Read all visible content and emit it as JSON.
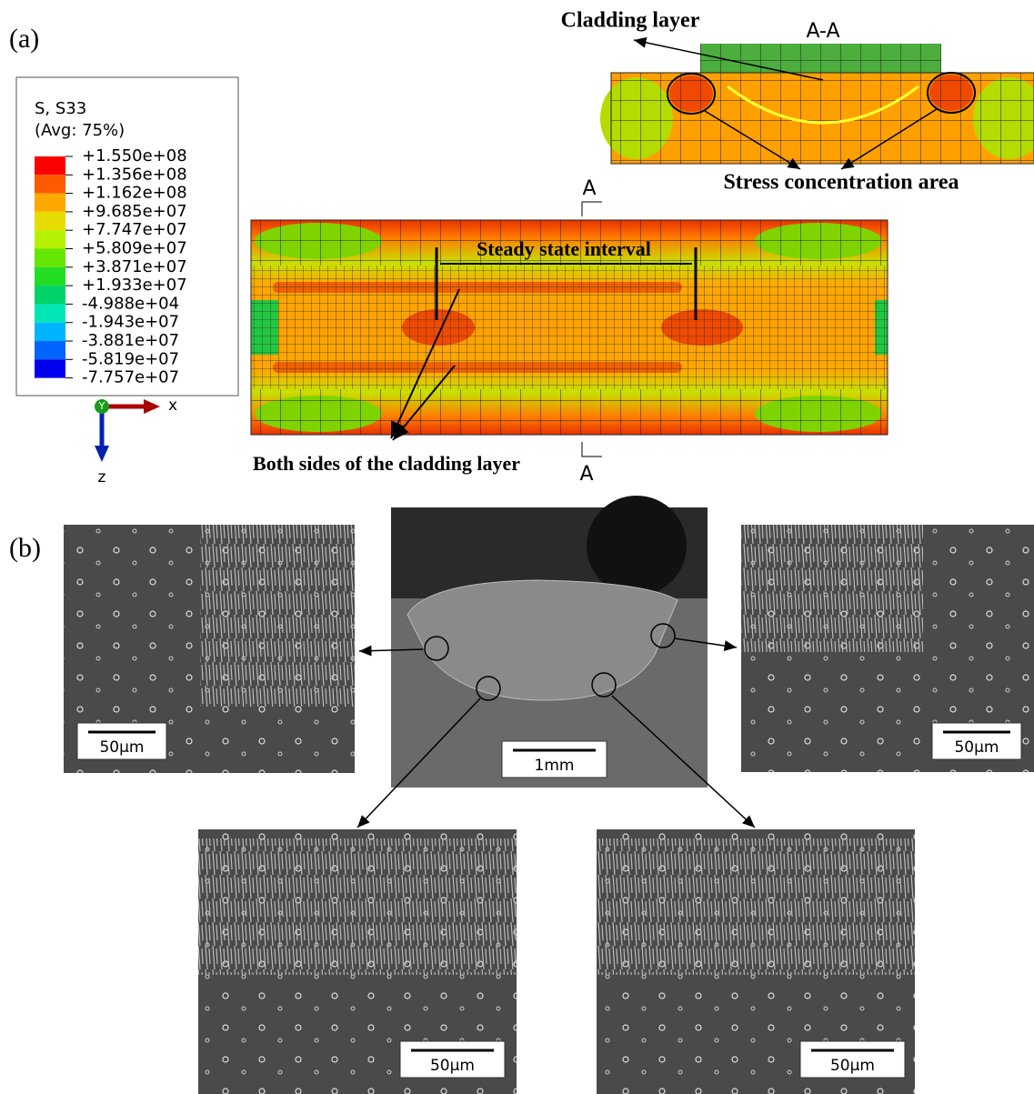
{
  "panel_a": {
    "label": "(a)",
    "legend": {
      "title": "S, S33",
      "subtitle": "(Avg: 75%)",
      "labels": [
        "+1.550e+08",
        "+1.356e+08",
        "+1.162e+08",
        "+9.685e+07",
        "+7.747e+07",
        "+5.809e+07",
        "+3.871e+07",
        "+1.933e+07",
        "-4.988e+04",
        "-1.943e+07",
        "-3.881e+07",
        "-5.819e+07",
        "-7.757e+07"
      ],
      "colors": [
        "#ff0000",
        "#ff5a00",
        "#ffa800",
        "#e6dc00",
        "#b4f000",
        "#64e600",
        "#22dd22",
        "#00d26a",
        "#00e6b4",
        "#00b4ff",
        "#0064ff",
        "#0000ee"
      ]
    },
    "triad": {
      "y": "Y",
      "x": "x",
      "z": "z"
    },
    "section_marker_top": "A",
    "section_marker_bottom": "A",
    "steady_state": "Steady state interval",
    "sides_note": "Both sides of the cladding layer",
    "cross_section": {
      "title": "A-A",
      "cladding": "Cladding layer",
      "stress_note": "Stress concentration area"
    }
  },
  "panel_b": {
    "label": "(b)",
    "images": [
      {
        "scale": "50µm"
      },
      {
        "scale": "1mm"
      },
      {
        "scale": "50µm"
      },
      {
        "scale": "50µm"
      },
      {
        "scale": "50µm"
      }
    ]
  }
}
